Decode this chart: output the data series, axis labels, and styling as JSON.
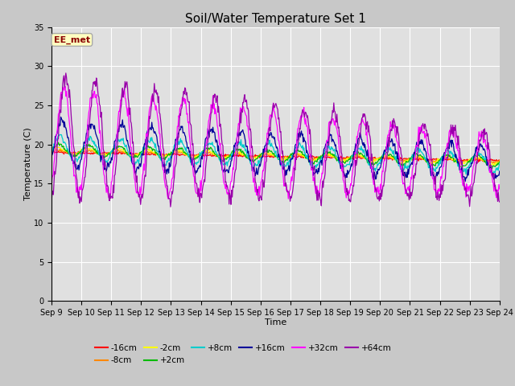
{
  "title": "Soil/Water Temperature Set 1",
  "xlabel": "Time",
  "ylabel": "Temperature (C)",
  "ylim": [
    0,
    35
  ],
  "yticks": [
    0,
    5,
    10,
    15,
    20,
    25,
    30,
    35
  ],
  "x_labels": [
    "Sep 9",
    "Sep 10",
    "Sep 11",
    "Sep 12",
    "Sep 13",
    "Sep 14",
    "Sep 15",
    "Sep 16",
    "Sep 17",
    "Sep 18",
    "Sep 19",
    "Sep 20",
    "Sep 21",
    "Sep 22",
    "Sep 23",
    "Sep 24"
  ],
  "annotation_text": "EE_met",
  "annotation_color": "#8B0000",
  "annotation_box_facecolor": "#FFFFC0",
  "annotation_box_edgecolor": "#AAAAAA",
  "legend_entries": [
    {
      "label": "-16cm",
      "color": "#FF0000"
    },
    {
      "label": "-8cm",
      "color": "#FF8800"
    },
    {
      "label": "-2cm",
      "color": "#FFFF00"
    },
    {
      "label": "+2cm",
      "color": "#00BB00"
    },
    {
      "label": "+8cm",
      "color": "#00CCCC"
    },
    {
      "label": "+16cm",
      "color": "#000099"
    },
    {
      "label": "+32cm",
      "color": "#FF00FF"
    },
    {
      "label": "+64cm",
      "color": "#9900AA"
    }
  ],
  "fig_facecolor": "#C8C8C8",
  "ax_facecolor": "#E0E0E0",
  "grid_color": "#FFFFFF",
  "title_fontsize": 11,
  "tick_fontsize": 7,
  "axis_label_fontsize": 8
}
